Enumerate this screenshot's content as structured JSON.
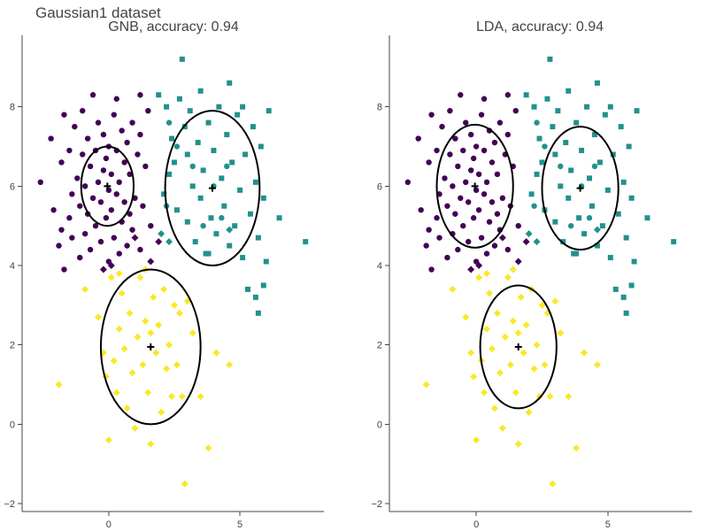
{
  "title": "Gaussian1 dataset",
  "colors": {
    "class0": "#440154",
    "class1": "#21918c",
    "class2": "#fde725",
    "ellipse": "#000000",
    "mean": "#000000"
  },
  "chart_data": [
    {
      "type": "scatter",
      "title": "GNB, accuracy: 0.94",
      "xlim": [
        -3.3,
        8.2
      ],
      "ylim": [
        -2.2,
        9.8
      ],
      "xticks": [
        0,
        5
      ],
      "yticks": [
        -2,
        0,
        2,
        4,
        6,
        8
      ],
      "grid": false,
      "ellipses": [
        {
          "class": 0,
          "cx": -0.05,
          "cy": 6.0,
          "rx": 1.0,
          "ry": 1.0
        },
        {
          "class": 1,
          "cx": 3.95,
          "cy": 5.95,
          "rx": 1.8,
          "ry": 1.95
        },
        {
          "class": 2,
          "cx": 1.6,
          "cy": 1.95,
          "rx": 1.9,
          "ry": 1.95
        }
      ],
      "means": [
        [
          -0.05,
          6.0
        ],
        [
          3.95,
          5.95
        ],
        [
          1.6,
          1.95
        ]
      ]
    },
    {
      "type": "scatter",
      "title": "LDA, accuracy: 0.94",
      "xlim": [
        -3.3,
        8.2
      ],
      "ylim": [
        -2.2,
        9.8
      ],
      "xticks": [
        0,
        5
      ],
      "yticks": [
        -2,
        0,
        2,
        4,
        6,
        8
      ],
      "grid": false,
      "ellipses": [
        {
          "class": 0,
          "cx": -0.05,
          "cy": 6.0,
          "rx": 1.45,
          "ry": 1.55
        },
        {
          "class": 1,
          "cx": 3.95,
          "cy": 5.95,
          "rx": 1.45,
          "ry": 1.55
        },
        {
          "class": 2,
          "cx": 1.6,
          "cy": 1.95,
          "rx": 1.45,
          "ry": 1.55
        }
      ],
      "means": [
        [
          -0.05,
          6.0
        ],
        [
          3.95,
          5.95
        ],
        [
          1.6,
          1.95
        ]
      ]
    }
  ],
  "points": {
    "class0": {
      "circle": [
        [
          -2.6,
          6.1
        ],
        [
          -2.2,
          7.2
        ],
        [
          -2.1,
          5.4
        ],
        [
          -1.9,
          4.5
        ],
        [
          -1.8,
          4.9
        ],
        [
          -1.8,
          6.6
        ],
        [
          -1.7,
          3.9
        ],
        [
          -1.7,
          7.8
        ],
        [
          -1.5,
          5.2
        ],
        [
          -1.5,
          6.9
        ],
        [
          -1.4,
          4.7
        ],
        [
          -1.4,
          5.8
        ],
        [
          -1.3,
          7.5
        ],
        [
          -1.2,
          6.2
        ],
        [
          -1.1,
          4.2
        ],
        [
          -1.1,
          5.5
        ],
        [
          -1.0,
          6.8
        ],
        [
          -1.0,
          7.9
        ],
        [
          -0.9,
          4.8
        ],
        [
          -0.9,
          6.0
        ],
        [
          -0.8,
          5.3
        ],
        [
          -0.8,
          7.2
        ],
        [
          -0.7,
          4.4
        ],
        [
          -0.7,
          6.5
        ],
        [
          -0.6,
          5.7
        ],
        [
          -0.6,
          8.3
        ],
        [
          -0.5,
          5.0
        ],
        [
          -0.5,
          6.9
        ],
        [
          -0.4,
          6.1
        ],
        [
          -0.4,
          7.6
        ],
        [
          -0.3,
          4.6
        ],
        [
          -0.3,
          5.6
        ],
        [
          -0.2,
          6.4
        ],
        [
          -0.2,
          7.3
        ],
        [
          -0.1,
          5.2
        ],
        [
          -0.1,
          6.7
        ],
        [
          0.0,
          4.1
        ],
        [
          0.0,
          5.9
        ],
        [
          0.0,
          7.0
        ],
        [
          0.1,
          5.4
        ],
        [
          0.1,
          6.3
        ],
        [
          0.2,
          4.7
        ],
        [
          0.2,
          7.8
        ],
        [
          0.3,
          5.8
        ],
        [
          0.3,
          6.9
        ],
        [
          0.4,
          4.3
        ],
        [
          0.4,
          6.1
        ],
        [
          0.5,
          5.1
        ],
        [
          0.5,
          7.4
        ],
        [
          0.6,
          5.6
        ],
        [
          0.6,
          6.6
        ],
        [
          0.7,
          4.5
        ],
        [
          0.7,
          7.1
        ],
        [
          0.8,
          5.3
        ],
        [
          0.8,
          6.3
        ],
        [
          0.9,
          4.9
        ],
        [
          0.9,
          7.6
        ],
        [
          1.0,
          5.7
        ],
        [
          1.1,
          6.8
        ],
        [
          1.2,
          4.4
        ],
        [
          1.2,
          7.3
        ],
        [
          1.3,
          5.5
        ],
        [
          1.4,
          6.5
        ],
        [
          1.5,
          7.9
        ],
        [
          1.6,
          5.0
        ],
        [
          0.3,
          8.2
        ],
        [
          1.2,
          8.3
        ]
      ],
      "diamond": [
        [
          -0.2,
          3.9
        ],
        [
          0.1,
          4.0
        ],
        [
          1.0,
          4.7
        ],
        [
          1.6,
          4.1
        ],
        [
          1.9,
          4.6
        ]
      ]
    },
    "class1": {
      "square": [
        [
          1.9,
          8.3
        ],
        [
          2.2,
          8.0
        ],
        [
          2.4,
          7.2
        ],
        [
          2.5,
          6.6
        ],
        [
          2.6,
          5.4
        ],
        [
          2.7,
          8.2
        ],
        [
          2.8,
          9.2
        ],
        [
          2.9,
          7.5
        ],
        [
          3.0,
          6.8
        ],
        [
          3.0,
          5.1
        ],
        [
          3.1,
          7.9
        ],
        [
          3.2,
          6.0
        ],
        [
          3.3,
          4.6
        ],
        [
          3.4,
          7.1
        ],
        [
          3.5,
          5.7
        ],
        [
          3.5,
          8.4
        ],
        [
          3.6,
          6.4
        ],
        [
          3.7,
          4.3
        ],
        [
          3.8,
          7.6
        ],
        [
          3.9,
          5.2
        ],
        [
          4.0,
          6.9
        ],
        [
          4.1,
          4.8
        ],
        [
          4.2,
          8.0
        ],
        [
          4.3,
          6.2
        ],
        [
          4.4,
          5.5
        ],
        [
          4.5,
          7.3
        ],
        [
          4.6,
          4.5
        ],
        [
          4.6,
          8.6
        ],
        [
          4.7,
          6.6
        ],
        [
          4.8,
          5.0
        ],
        [
          4.9,
          7.8
        ],
        [
          5.0,
          5.9
        ],
        [
          5.1,
          4.2
        ],
        [
          5.1,
          8.0
        ],
        [
          5.2,
          6.8
        ],
        [
          5.3,
          3.4
        ],
        [
          5.4,
          5.3
        ],
        [
          5.5,
          7.5
        ],
        [
          5.6,
          6.1
        ],
        [
          5.6,
          3.2
        ],
        [
          5.7,
          4.7
        ],
        [
          5.8,
          7.0
        ],
        [
          5.9,
          5.7
        ],
        [
          5.9,
          3.5
        ],
        [
          6.0,
          4.1
        ],
        [
          6.1,
          7.9
        ],
        [
          6.5,
          5.2
        ],
        [
          7.5,
          4.6
        ],
        [
          5.7,
          2.8
        ],
        [
          3.8,
          4.3
        ],
        [
          2.3,
          6.3
        ],
        [
          2.1,
          5.8
        ]
      ],
      "circle": [
        [
          2.3,
          7.6
        ],
        [
          2.6,
          7.0
        ],
        [
          3.2,
          6.5
        ],
        [
          3.6,
          5.0
        ],
        [
          4.0,
          6.0
        ],
        [
          4.3,
          5.2
        ],
        [
          4.5,
          6.5
        ],
        [
          2.2,
          5.5
        ]
      ],
      "diamond": [
        [
          2.0,
          4.8
        ],
        [
          4.6,
          4.9
        ],
        [
          2.3,
          4.6
        ]
      ]
    },
    "class2": {
      "diamond": [
        [
          -1.9,
          1.0
        ],
        [
          -0.9,
          3.4
        ],
        [
          -0.4,
          2.7
        ],
        [
          -0.2,
          1.8
        ],
        [
          -0.1,
          1.2
        ],
        [
          0.0,
          -0.4
        ],
        [
          0.1,
          3.7
        ],
        [
          0.2,
          1.6
        ],
        [
          0.3,
          0.8
        ],
        [
          0.4,
          2.4
        ],
        [
          0.5,
          3.3
        ],
        [
          0.6,
          1.9
        ],
        [
          0.7,
          0.4
        ],
        [
          0.8,
          2.8
        ],
        [
          0.9,
          1.3
        ],
        [
          1.0,
          -0.1
        ],
        [
          1.1,
          2.2
        ],
        [
          1.2,
          3.7
        ],
        [
          1.3,
          1.5
        ],
        [
          1.4,
          2.6
        ],
        [
          1.5,
          0.8
        ],
        [
          1.6,
          -0.5
        ],
        [
          1.7,
          3.2
        ],
        [
          1.8,
          1.8
        ],
        [
          1.9,
          2.5
        ],
        [
          2.0,
          0.3
        ],
        [
          2.1,
          3.4
        ],
        [
          2.2,
          1.4
        ],
        [
          2.3,
          2.0
        ],
        [
          2.4,
          0.7
        ],
        [
          2.5,
          3.0
        ],
        [
          2.6,
          1.5
        ],
        [
          2.7,
          2.8
        ],
        [
          2.8,
          0.7
        ],
        [
          2.9,
          -1.5
        ],
        [
          3.0,
          3.1
        ],
        [
          3.2,
          2.3
        ],
        [
          3.5,
          0.7
        ],
        [
          3.8,
          -0.6
        ],
        [
          4.1,
          1.8
        ],
        [
          4.6,
          1.5
        ],
        [
          0.4,
          3.8
        ],
        [
          1.4,
          3.9
        ],
        [
          1.6,
          2.3
        ]
      ]
    }
  }
}
